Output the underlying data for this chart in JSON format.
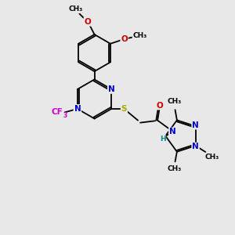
{
  "bg_color": "#e8e8e8",
  "bond_color": "#000000",
  "N_color": "#0000cc",
  "O_color": "#cc0000",
  "S_color": "#aaaa00",
  "F_color": "#cc00cc",
  "H_color": "#008888",
  "font_size": 7.5,
  "bond_width": 1.3,
  "fig_w": 3.0,
  "fig_h": 3.0,
  "dpi": 100,
  "xlim": [
    0,
    10
  ],
  "ylim": [
    0,
    10
  ]
}
